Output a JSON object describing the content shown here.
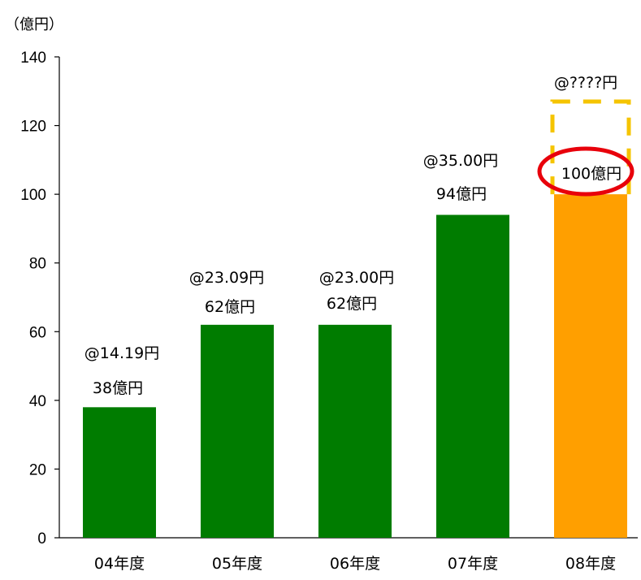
{
  "chart_data": {
    "type": "bar",
    "unit_label": "（億円）",
    "categories": [
      "04年度",
      "05年度",
      "06年度",
      "07年度",
      "08年度"
    ],
    "values": [
      38,
      62,
      62,
      94,
      100
    ],
    "price_labels": [
      "@14.19円",
      "@23.09円",
      "@23.00円",
      "@35.00円",
      "@????円"
    ],
    "value_labels": [
      "38億円",
      "62億円",
      "62億円",
      "94億円",
      "100億円"
    ],
    "yticks": [
      0,
      20,
      40,
      60,
      80,
      100,
      120,
      140
    ],
    "ylim": [
      0,
      140
    ],
    "grid": false,
    "colors": {
      "bar": "#007c00",
      "highlight_bar": "#ff9f00",
      "dashed_box": "#f5c400",
      "circle": "#e8000b"
    },
    "highlight_index": 4,
    "projected_top": 127
  }
}
